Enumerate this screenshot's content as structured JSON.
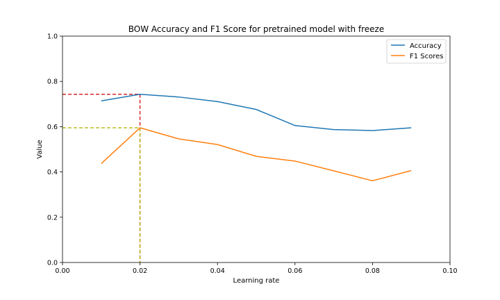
{
  "chart_data": {
    "type": "line",
    "title": "BOW Accuracy and F1 Score for pretrained model with freeze",
    "xlabel": "Learning rate",
    "ylabel": "Value",
    "xlim": [
      0.0,
      0.1
    ],
    "ylim": [
      0.0,
      1.0
    ],
    "xticks": [
      "0.00",
      "0.02",
      "0.04",
      "0.06",
      "0.08",
      "0.10"
    ],
    "yticks": [
      "0.0",
      "0.2",
      "0.4",
      "0.6",
      "0.8",
      "1.0"
    ],
    "x": [
      0.01,
      0.02,
      0.03,
      0.04,
      0.05,
      0.06,
      0.07,
      0.08,
      0.09
    ],
    "series": [
      {
        "name": "Accuracy",
        "color": "#1f77b4",
        "values": [
          0.714,
          0.743,
          0.731,
          0.711,
          0.676,
          0.605,
          0.587,
          0.583,
          0.595
        ]
      },
      {
        "name": "F1 Scores",
        "color": "#ff7f0e",
        "values": [
          0.437,
          0.595,
          0.546,
          0.521,
          0.469,
          0.448,
          0.405,
          0.361,
          0.406
        ]
      }
    ],
    "reference_lines": [
      {
        "x": 0.02,
        "y": 0.743,
        "color": "#d62728",
        "style": "dashed"
      },
      {
        "x": 0.02,
        "y": 0.595,
        "color": "#bcbd22",
        "style": "dashed"
      }
    ],
    "legend": {
      "position": "top-right",
      "entries": [
        "Accuracy",
        "F1 Scores"
      ]
    },
    "grid": false
  }
}
